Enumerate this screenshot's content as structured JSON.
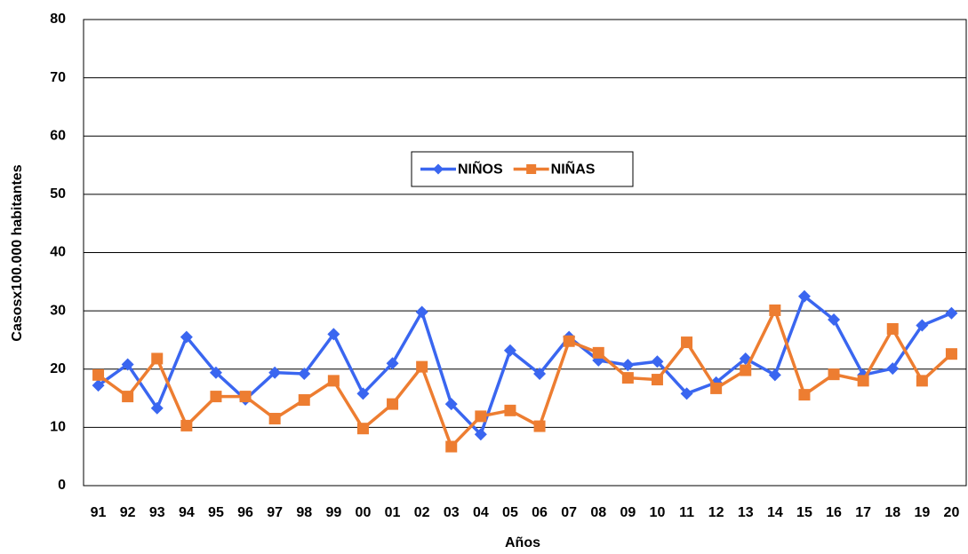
{
  "chart_data": {
    "type": "line",
    "x_label": "Años",
    "y_label": "Casosx100.000 habitantes",
    "categories": [
      "91",
      "92",
      "93",
      "94",
      "95",
      "96",
      "97",
      "98",
      "99",
      "00",
      "01",
      "02",
      "03",
      "04",
      "05",
      "06",
      "07",
      "08",
      "09",
      "10",
      "11",
      "12",
      "13",
      "14",
      "15",
      "16",
      "17",
      "18",
      "19",
      "20"
    ],
    "series": [
      {
        "name": "NIÑOS",
        "color": "#3a66f0",
        "marker": "diamond",
        "values": [
          17.2,
          20.8,
          13.3,
          25.5,
          19.4,
          14.8,
          19.4,
          19.2,
          26.0,
          15.8,
          21.0,
          29.8,
          14.0,
          8.8,
          23.2,
          19.2,
          25.5,
          21.5,
          20.7,
          21.3,
          15.8,
          17.7,
          21.8,
          19.0,
          32.5,
          28.5,
          19.0,
          20.1,
          27.5,
          29.6
        ]
      },
      {
        "name": "NIÑAS",
        "color": "#ed7d31",
        "marker": "square",
        "values": [
          19.0,
          15.3,
          21.8,
          10.3,
          15.3,
          15.3,
          11.5,
          14.7,
          18.0,
          9.8,
          14.0,
          20.4,
          6.7,
          11.9,
          12.9,
          10.2,
          24.8,
          22.8,
          18.5,
          18.2,
          24.6,
          16.7,
          19.8,
          30.1,
          15.6,
          19.1,
          18.0,
          26.9,
          18.0,
          22.6
        ]
      }
    ],
    "ylim": [
      0,
      80
    ],
    "yticks": [
      0,
      10,
      20,
      30,
      40,
      50,
      60,
      70,
      80
    ],
    "grid": true,
    "legend_position": "center"
  }
}
